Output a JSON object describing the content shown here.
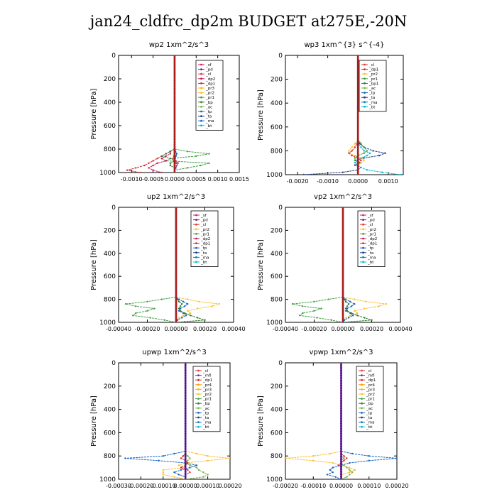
{
  "page_title": "jan24_cldfrc_dp2m  BUDGET at275E,-20N",
  "colors": {
    "sf": "#d81b60",
    "pd": "#6a1b9a",
    "cl": "#e53935",
    "dp2": "#c2185b",
    "dp1": "#d32f2f",
    "pr1": "#43a047",
    "pr2": "#fbc02d",
    "pr3": "#ffb300",
    "pr4": "#ff9800",
    "bp": "#2e7d32",
    "ac": "#7cb342",
    "tp": "#1565c0",
    "ta": "#1e3a8a",
    "ma": "#0277bd",
    "bt": "#00bcd4",
    "mt": "#5e35b1",
    "frame": "#000000"
  },
  "chart_data": [
    {
      "type": "line",
      "title": "wp2   1xm^2/s^3",
      "ylabel": "Pressure  [hPa]",
      "ylim": [
        1000,
        0
      ],
      "yticks": [
        0,
        200,
        400,
        600,
        800,
        1000
      ],
      "xlim": [
        -0.0013,
        0.0015
      ],
      "xtick_labels": [
        "-0.0010",
        "-0.0005",
        "0.0000",
        "0.0005",
        "0.0010",
        "0.0015"
      ],
      "xtick_values": [
        -0.001,
        -0.0005,
        0.0,
        0.0005,
        0.001,
        0.0015
      ],
      "legend": [
        "_sf",
        "_pd",
        "_cl",
        "_dp2",
        "_dp1",
        "_pr3",
        "_pr2",
        "_pr1",
        "_bp",
        "_ac",
        "_tp",
        "_ta",
        "_ma",
        "_bt"
      ],
      "legend_keys": [
        "sf",
        "pd",
        "cl",
        "dp2",
        "dp1",
        "pr3",
        "pr2",
        "pr1",
        "bp",
        "ac",
        "tp",
        "ta",
        "ma",
        "bt"
      ],
      "p": [
        800,
        820,
        840,
        860,
        880,
        900,
        920,
        940,
        960,
        980,
        1000
      ],
      "series": [
        {
          "key": "pr1",
          "values": [
            0.0,
            0.0003,
            0.0008,
            0.0005,
            -0.0001,
            -0.0002,
            0.0008,
            0.0006,
            0.0003,
            0.0,
            0.0
          ]
        },
        {
          "key": "dp1",
          "values": [
            0.0,
            -0.0001,
            -0.0002,
            -0.0003,
            -0.0004,
            -0.0005,
            -0.0006,
            -0.0007,
            -0.0009,
            -0.0011,
            -0.0008
          ]
        },
        {
          "key": "dp2",
          "values": [
            0.0,
            -0.0001,
            -0.0001,
            -0.0002,
            -0.0003,
            -0.0002,
            -0.0004,
            -0.0005,
            -0.0006,
            -0.0005,
            -0.0003
          ]
        },
        {
          "key": "bp",
          "values": [
            0.0,
            -0.0001,
            -0.0002,
            -0.0003,
            -0.0001,
            0.0,
            -0.0001,
            -0.0001,
            0.0,
            0.0,
            0.0
          ]
        },
        {
          "key": "tp",
          "values": [
            0.0,
            2e-05,
            5e-05,
            3e-05,
            1e-05,
            0.0,
            4e-05,
            5e-05,
            3e-05,
            0.0,
            0.0
          ]
        },
        {
          "key": "cl",
          "values": [
            0.0,
            0.0,
            0.0,
            -2e-05,
            -3e-05,
            3e-05,
            8e-05,
            5e-05,
            2e-05,
            0.0,
            0.0
          ]
        },
        {
          "key": "pd",
          "values": [
            0.0,
            0.0,
            0.0,
            0.0,
            0.0,
            0.0,
            0.0,
            0.0,
            0.0,
            0.0,
            0.0
          ]
        }
      ]
    },
    {
      "type": "line",
      "title": "wp3   1xm^{3} s^{-4}",
      "ylabel": "Pressure  [hPa]",
      "ylim": [
        1000,
        0
      ],
      "yticks": [
        0,
        200,
        400,
        600,
        800,
        1000
      ],
      "xlim": [
        -0.0024,
        0.0015
      ],
      "xtick_labels": [
        "-0.0020",
        "-0.0010",
        "0.0000",
        "0.0010"
      ],
      "xtick_values": [
        -0.002,
        -0.001,
        0.0,
        0.001
      ],
      "legend": [
        "_cl",
        "_dp1",
        "_pr2",
        "_pr1",
        "_bp1",
        "_ac",
        "_tp",
        "_ta",
        "_ma",
        "_bt"
      ],
      "legend_keys": [
        "cl",
        "dp1",
        "pr2",
        "pr1",
        "bp",
        "ac",
        "tp",
        "ta",
        "ma",
        "bt"
      ],
      "p": [
        700,
        740,
        770,
        800,
        820,
        840,
        860,
        880,
        900,
        920,
        940,
        960,
        980,
        1000
      ],
      "series": [
        {
          "key": "ta",
          "values": [
            0.0,
            5e-05,
            0.0002,
            0.0005,
            0.0009,
            0.0007,
            0.0002,
            -0.0001,
            0.0001,
            -0.0001,
            0.0001,
            0.0,
            -0.0005,
            -0.0018
          ]
        },
        {
          "key": "bt",
          "values": [
            0.0,
            0.0,
            0.0001,
            0.0002,
            0.0004,
            0.0003,
            0.0001,
            0.0,
            -0.0001,
            0.0,
            0.0001,
            0.0003,
            0.0008,
            0.0014
          ]
        },
        {
          "key": "pr2",
          "values": [
            0.0,
            -0.0001,
            -0.0002,
            -0.0003,
            -0.0003,
            -0.0001,
            0.0001,
            0.0002,
            0.0001,
            0.0,
            0.0,
            0.0,
            0.0,
            0.0
          ]
        },
        {
          "key": "pr1",
          "values": [
            0.0,
            0.0001,
            0.0002,
            0.0003,
            0.0002,
            0.0,
            -0.0001,
            -0.0001,
            0.0,
            0.0,
            0.0,
            0.0,
            0.0,
            0.0
          ]
        },
        {
          "key": "dp1",
          "values": [
            0.0,
            -3e-05,
            -0.0001,
            -0.0002,
            -0.0003,
            -0.0002,
            0.0,
            0.0001,
            0.0,
            0.0,
            0.0,
            0.0,
            0.0,
            0.0
          ]
        },
        {
          "key": "cl",
          "values": [
            0.0,
            0.0,
            0.0,
            0.0,
            0.0,
            0.0,
            0.0,
            0.0,
            0.0,
            0.0,
            0.0,
            0.0,
            0.0,
            0.0
          ]
        }
      ]
    },
    {
      "type": "line",
      "title": "up2   1xm^2/s^3",
      "ylabel": "Pressure  [hPa]",
      "ylim": [
        1000,
        0
      ],
      "yticks": [
        0,
        200,
        400,
        600,
        800,
        1000
      ],
      "xlim": [
        -0.0004,
        0.0004
      ],
      "xtick_labels": [
        "-0.00040",
        "-0.00020",
        "0.00000",
        "0.00020",
        "0.00040"
      ],
      "xtick_values": [
        -0.0004,
        -0.0002,
        0.0,
        0.0002,
        0.0004
      ],
      "legend": [
        "_sf",
        "_pd",
        "_cl",
        "_pr2",
        "_pr1",
        "_dp2",
        "_dp1",
        "_tp",
        "_ta",
        "_ma",
        "_bt"
      ],
      "legend_keys": [
        "sf",
        "pd",
        "cl",
        "pr2",
        "pr1",
        "dp2",
        "dp1",
        "tp",
        "ta",
        "ma",
        "bt"
      ],
      "p": [
        780,
        800,
        820,
        840,
        860,
        880,
        900,
        920,
        940,
        960,
        980,
        1000
      ],
      "series": [
        {
          "key": "pr1",
          "values": [
            0.0,
            -0.0001,
            -0.0002,
            -0.00035,
            -0.00028,
            -0.00015,
            -0.0002,
            -0.00028,
            -0.0003,
            -0.00018,
            -8e-05,
            0.0
          ]
        },
        {
          "key": "pr2",
          "values": [
            0.0,
            8e-05,
            0.00016,
            0.0003,
            0.00025,
            0.00015,
            8e-05,
            0.0001,
            5e-05,
            2e-05,
            0.0,
            0.0
          ]
        },
        {
          "key": "tp",
          "values": [
            0.0,
            2e-05,
            5e-05,
            8e-05,
            6e-05,
            3e-05,
            2e-05,
            5e-05,
            7e-05,
            4e-05,
            1e-05,
            0.0
          ]
        },
        {
          "key": "bp",
          "values": [
            0.0,
            1e-05,
            2e-05,
            4e-05,
            3e-05,
            2e-05,
            3e-05,
            6e-05,
            0.0001,
            0.00015,
            0.0002,
            0.0
          ]
        },
        {
          "key": "dp1",
          "values": [
            0.0,
            0.0,
            0.0,
            0.0,
            0.0,
            0.0,
            0.0,
            0.0,
            0.0,
            0.0,
            0.0,
            0.0
          ]
        }
      ]
    },
    {
      "type": "line",
      "title": "vp2   1xm^2/s^3",
      "ylabel": "Pressure  [hPa]",
      "ylim": [
        1000,
        0
      ],
      "yticks": [
        0,
        200,
        400,
        600,
        800,
        1000
      ],
      "xlim": [
        -0.0004,
        0.0004
      ],
      "xtick_labels": [
        "-0.00040",
        "-0.00020",
        "0.00000",
        "0.00020",
        "0.00040"
      ],
      "xtick_values": [
        -0.0004,
        -0.0002,
        0.0,
        0.0002,
        0.0004
      ],
      "legend": [
        "_sf",
        "_pd",
        "_cl",
        "_pr2",
        "_pr1",
        "_dp2",
        "_dp1",
        "_tp",
        "_ta",
        "_ma",
        "_bt"
      ],
      "legend_keys": [
        "sf",
        "pd",
        "cl",
        "pr2",
        "pr1",
        "dp2",
        "dp1",
        "tp",
        "ta",
        "ma",
        "bt"
      ],
      "p": [
        780,
        800,
        820,
        840,
        860,
        880,
        900,
        920,
        940,
        960,
        980,
        1000
      ],
      "series": [
        {
          "key": "pr1",
          "values": [
            0.0,
            -0.0001,
            -0.0002,
            -0.00035,
            -0.00028,
            -0.00015,
            -0.0002,
            -0.00028,
            -0.0003,
            -0.00018,
            -8e-05,
            0.0
          ]
        },
        {
          "key": "pr2",
          "values": [
            0.0,
            8e-05,
            0.00016,
            0.0003,
            0.00025,
            0.00015,
            8e-05,
            0.0001,
            5e-05,
            2e-05,
            0.0,
            0.0
          ]
        },
        {
          "key": "tp",
          "values": [
            0.0,
            2e-05,
            5e-05,
            8e-05,
            6e-05,
            3e-05,
            2e-05,
            5e-05,
            7e-05,
            4e-05,
            1e-05,
            0.0
          ]
        },
        {
          "key": "bp",
          "values": [
            0.0,
            1e-05,
            2e-05,
            4e-05,
            3e-05,
            2e-05,
            3e-05,
            6e-05,
            0.0001,
            0.00015,
            0.0002,
            0.0
          ]
        },
        {
          "key": "dp1",
          "values": [
            0.0,
            0.0,
            0.0,
            0.0,
            0.0,
            0.0,
            0.0,
            0.0,
            0.0,
            0.0,
            0.0,
            0.0
          ]
        }
      ]
    },
    {
      "type": "line",
      "title": "upwp   1xm^2/s^3",
      "ylabel": "Pressure  [hPa]",
      "ylim": [
        1000,
        0
      ],
      "yticks": [
        0,
        200,
        400,
        600,
        800,
        1000
      ],
      "xlim": [
        -0.0003,
        0.0002
      ],
      "xtick_labels": [
        "-0.00030",
        "-0.00020",
        "-0.00010",
        "0.00000",
        "0.00010",
        "0.00020"
      ],
      "xtick_values": [
        -0.0003,
        -0.0002,
        -0.0001,
        0.0,
        0.0001,
        0.0002
      ],
      "legend": [
        "_cl",
        "_mfl",
        "_dp1",
        "_pr4",
        "_pr3",
        "_pr2",
        "_pr1",
        "_bp",
        "_ac",
        "_tp",
        "_ta",
        "_ma",
        "_bt"
      ],
      "legend_keys": [
        "cl",
        "mt",
        "dp1",
        "pr4",
        "pr3",
        "pr2",
        "pr1",
        "bp",
        "ac",
        "tp",
        "ta",
        "ma",
        "bt"
      ],
      "p": [
        760,
        780,
        800,
        820,
        840,
        860,
        880,
        900,
        920,
        940,
        960,
        980,
        1000
      ],
      "series": [
        {
          "key": "pr2",
          "values": [
            0.0,
            5e-05,
            0.0001,
            0.0002,
            0.0001,
            0.0,
            -3e-05,
            0.0,
            -0.0001,
            -0.0001,
            -0.0001,
            -5e-05,
            0.0
          ]
        },
        {
          "key": "tp",
          "values": [
            0.0,
            -5e-05,
            -0.0001,
            -0.00027,
            -0.00012,
            0.0,
            5e-05,
            2e-05,
            -2e-05,
            -5e-05,
            -3e-05,
            0.0,
            0.0
          ]
        },
        {
          "key": "ac",
          "values": [
            0.0,
            0.0,
            1e-05,
            2e-05,
            1e-05,
            0.0,
            2e-05,
            5e-05,
            6e-05,
            8e-05,
            0.0001,
            8e-05,
            0.0
          ]
        },
        {
          "key": "dp1",
          "values": [
            0.0,
            0.0,
            -1e-05,
            -2e-05,
            0.0,
            1e-05,
            0.0,
            -2e-05,
            1e-05,
            2e-05,
            0.0,
            0.0,
            0.0
          ]
        },
        {
          "key": "cl",
          "values": [
            0.0,
            0.0,
            0.0,
            0.0,
            0.0,
            0.0,
            0.0,
            0.0,
            0.0,
            0.0,
            0.0,
            0.0,
            0.0
          ]
        }
      ]
    },
    {
      "type": "line",
      "title": "vpwp   1xm^2/s^3",
      "ylabel": "Pressure  [hPa]",
      "ylim": [
        1000,
        0
      ],
      "yticks": [
        0,
        200,
        400,
        600,
        800,
        1000
      ],
      "xlim": [
        -0.0002,
        0.0002
      ],
      "xtick_labels": [
        "-0.00020",
        "-0.00010",
        "0.00000",
        "0.00010",
        "0.00020"
      ],
      "xtick_values": [
        -0.0002,
        -0.0001,
        0.0,
        0.0001,
        0.0002
      ],
      "legend": [
        "_cl",
        "_mfl",
        "_dp1",
        "_pr4",
        "_pr3",
        "_pr2",
        "_pr1",
        "_bp",
        "_ac",
        "_tp",
        "_ta",
        "_ma",
        "_bt"
      ],
      "legend_keys": [
        "cl",
        "mt",
        "dp1",
        "pr4",
        "pr3",
        "pr2",
        "pr1",
        "bp",
        "ac",
        "tp",
        "ta",
        "ma",
        "bt"
      ],
      "p": [
        760,
        780,
        800,
        820,
        840,
        860,
        880,
        900,
        920,
        940,
        960,
        980,
        1000
      ],
      "series": [
        {
          "key": "pr2",
          "values": [
            0.0,
            -4e-05,
            -0.0001,
            -0.0002,
            -0.0001,
            -3e-05,
            0.0,
            3e-05,
            5e-05,
            3e-05,
            0.0,
            0.0,
            0.0
          ]
        },
        {
          "key": "tp",
          "values": [
            0.0,
            4e-05,
            0.0001,
            0.0002,
            0.0001,
            3e-05,
            0.0,
            -3e-05,
            -4e-05,
            -3e-05,
            -5e-05,
            -2e-05,
            0.0
          ]
        },
        {
          "key": "ac",
          "values": [
            0.0,
            0.0,
            0.0,
            1e-05,
            0.0,
            0.0,
            1e-05,
            2e-05,
            3e-05,
            4e-05,
            3e-05,
            2e-05,
            0.0
          ]
        },
        {
          "key": "dp1",
          "values": [
            0.0,
            0.0,
            1e-05,
            2e-05,
            1e-05,
            0.0,
            -1e-05,
            0.0,
            0.0,
            0.0,
            0.0,
            0.0,
            0.0
          ]
        },
        {
          "key": "cl",
          "values": [
            0.0,
            0.0,
            0.0,
            0.0,
            0.0,
            0.0,
            0.0,
            0.0,
            0.0,
            0.0,
            0.0,
            0.0,
            0.0
          ]
        }
      ]
    }
  ]
}
